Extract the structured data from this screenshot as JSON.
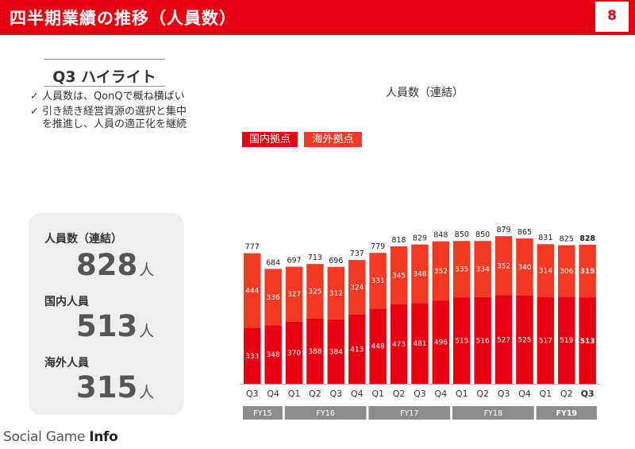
{
  "header": {
    "title": "四半期業績の推移（人員数）",
    "page_number": "8"
  },
  "highlight": {
    "title": "Q3 ハイライト",
    "bullets": [
      "人員数は、QonQで概ね横ばい",
      "引き続き経営資源の選択と集中を推進し、人員の適正化を継続"
    ],
    "check_glyph": "✓"
  },
  "summary": {
    "items": [
      {
        "label": "人員数（連結）",
        "value": "828",
        "unit": "人"
      },
      {
        "label": "国内人員",
        "value": "513",
        "unit": "人"
      },
      {
        "label": "海外人員",
        "value": "315",
        "unit": "人"
      }
    ]
  },
  "chart_data": {
    "type": "bar",
    "stacked": true,
    "title": "人員数（連結）",
    "categories": [
      "Q3",
      "Q4",
      "Q1",
      "Q2",
      "Q3",
      "Q4",
      "Q1",
      "Q2",
      "Q3",
      "Q4",
      "Q1",
      "Q2",
      "Q3",
      "Q4",
      "Q1",
      "Q2",
      "Q3"
    ],
    "fiscal_years": [
      {
        "label": "FY15",
        "from": 0,
        "to": 1
      },
      {
        "label": "FY16",
        "from": 2,
        "to": 5
      },
      {
        "label": "FY17",
        "from": 6,
        "to": 9
      },
      {
        "label": "FY18",
        "from": 10,
        "to": 13
      },
      {
        "label": "FY19",
        "from": 14,
        "to": 16
      }
    ],
    "series": [
      {
        "name": "国内拠点",
        "color": "#e60012",
        "values": [
          333,
          348,
          370,
          388,
          384,
          413,
          448,
          473,
          481,
          496,
          515,
          516,
          527,
          525,
          517,
          519,
          513
        ]
      },
      {
        "name": "海外拠点",
        "color": "#f03a24",
        "values": [
          444,
          336,
          327,
          325,
          312,
          324,
          331,
          345,
          348,
          352,
          335,
          334,
          352,
          340,
          314,
          306,
          315
        ]
      }
    ],
    "totals": [
      777,
      684,
      697,
      713,
      696,
      737,
      779,
      818,
      829,
      848,
      850,
      850,
      879,
      865,
      831,
      825,
      828
    ],
    "highlight_index": 16,
    "legend_position": "top-left",
    "grid": false
  },
  "watermark": {
    "text_plain": "Social Game ",
    "text_bold": "Info"
  }
}
